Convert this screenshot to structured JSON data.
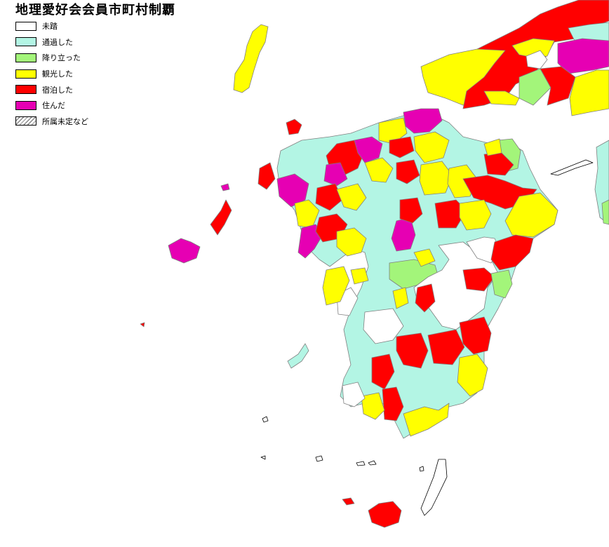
{
  "title": "地理愛好会会員市町村制覇",
  "colors": {
    "not_visited": "#ffffff",
    "passed": "#b3f5e4",
    "landed": "#a3f57a",
    "sightseeing": "#ffff00",
    "stayed": "#ff0000",
    "lived": "#e600b3",
    "border": "#808080"
  },
  "legend": [
    {
      "key": "not_visited",
      "label": "未踏",
      "color": "#ffffff"
    },
    {
      "key": "passed",
      "label": "通過した",
      "color": "#b3f5e4"
    },
    {
      "key": "landed",
      "label": "降り立った",
      "color": "#a3f57a"
    },
    {
      "key": "sightseeing",
      "label": "観光した",
      "color": "#ffff00"
    },
    {
      "key": "stayed",
      "label": "宿泊した",
      "color": "#ff0000"
    },
    {
      "key": "lived",
      "label": "住んだ",
      "color": "#e600b3"
    },
    {
      "key": "unassigned",
      "label": "所属未定など",
      "color": "hatched"
    }
  ]
}
